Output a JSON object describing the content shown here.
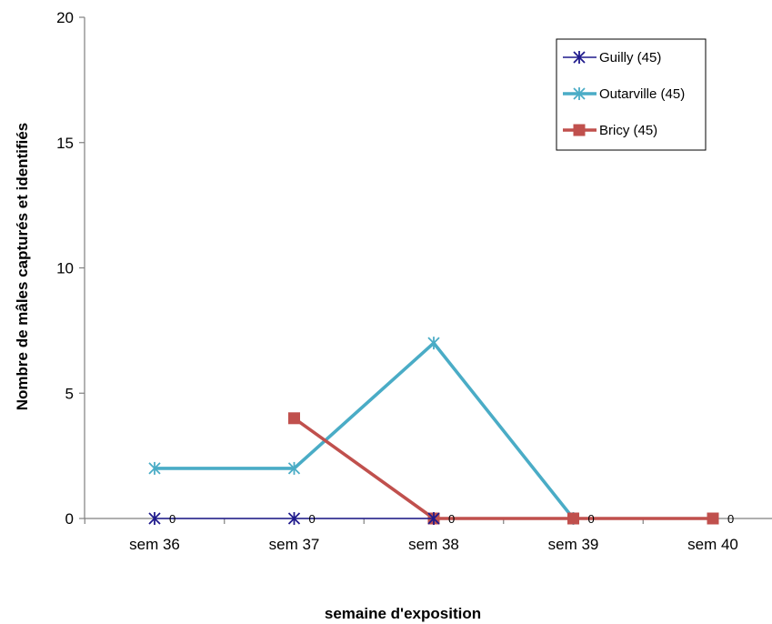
{
  "chart_data": {
    "type": "line",
    "categories": [
      "sem 36",
      "sem 37",
      "sem 38",
      "sem 39",
      "sem 40"
    ],
    "xlabel": "semaine d'exposition",
    "ylabel": "Nombre de mâles capturés et identifiés",
    "ylim": [
      0,
      20
    ],
    "yticks": [
      "0",
      "5",
      "10",
      "15",
      "20"
    ],
    "grid": false,
    "legend": "top-right",
    "series": [
      {
        "name": "Guilly (45)",
        "color": "#1f1a8c",
        "marker": "star",
        "values": [
          0,
          0,
          0,
          null,
          null
        ],
        "labels": [
          "0",
          "0",
          null,
          null,
          null
        ]
      },
      {
        "name": "Outarville (45)",
        "color": "#4aacc6",
        "marker": "star",
        "values": [
          2,
          2,
          7,
          0,
          null
        ],
        "labels": [
          null,
          null,
          null,
          null,
          null
        ]
      },
      {
        "name": "Bricy (45)",
        "color": "#c0504d",
        "marker": "square",
        "values": [
          null,
          4,
          0,
          0,
          0
        ],
        "labels": [
          null,
          null,
          "0",
          "0",
          "0"
        ]
      }
    ]
  }
}
